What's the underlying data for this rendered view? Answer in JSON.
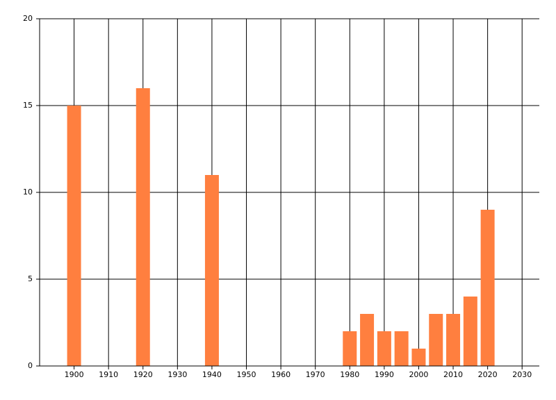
{
  "chart_data": {
    "type": "bar",
    "x": [
      1900,
      1920,
      1940,
      1980,
      1985,
      1990,
      1995,
      2000,
      2005,
      2010,
      2015,
      2020
    ],
    "values": [
      15,
      16,
      11,
      2,
      3,
      2,
      2,
      1,
      3,
      3,
      4,
      9
    ],
    "color": "#ff7f3f",
    "xlim": [
      1890,
      2035
    ],
    "xticks": [
      1900,
      1910,
      1920,
      1930,
      1940,
      1950,
      1960,
      1970,
      1980,
      1990,
      2000,
      2010,
      2020,
      2030
    ],
    "ylim": [
      0,
      20
    ],
    "yticks": [
      0,
      5,
      10,
      15,
      20
    ],
    "grid": true
  }
}
